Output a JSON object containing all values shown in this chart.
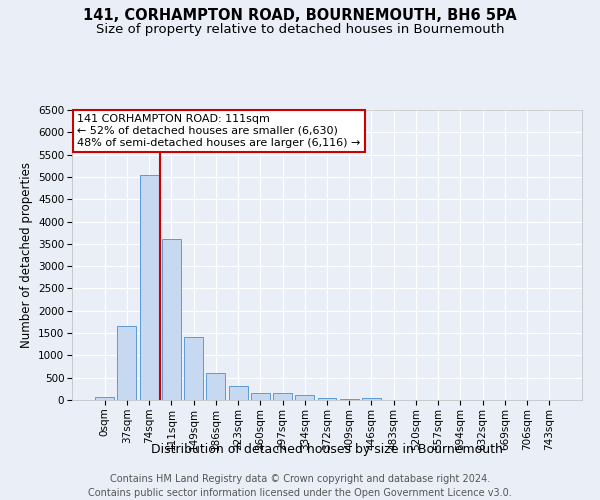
{
  "title": "141, CORHAMPTON ROAD, BOURNEMOUTH, BH6 5PA",
  "subtitle": "Size of property relative to detached houses in Bournemouth",
  "xlabel": "Distribution of detached houses by size in Bournemouth",
  "ylabel": "Number of detached properties",
  "footer_line1": "Contains HM Land Registry data © Crown copyright and database right 2024.",
  "footer_line2": "Contains public sector information licensed under the Open Government Licence v3.0.",
  "bin_labels": [
    "0sqm",
    "37sqm",
    "74sqm",
    "111sqm",
    "149sqm",
    "186sqm",
    "223sqm",
    "260sqm",
    "297sqm",
    "334sqm",
    "372sqm",
    "409sqm",
    "446sqm",
    "483sqm",
    "520sqm",
    "557sqm",
    "594sqm",
    "632sqm",
    "669sqm",
    "706sqm",
    "743sqm"
  ],
  "bar_values": [
    75,
    1650,
    5050,
    3600,
    1420,
    610,
    310,
    160,
    150,
    105,
    55,
    30,
    55,
    10,
    5,
    2,
    2,
    2,
    1,
    1,
    0
  ],
  "bar_color": "#c6d9f0",
  "bar_edgecolor": "#5b9bd5",
  "highlight_index": 3,
  "highlight_line_color": "#cc0000",
  "annotation_line1": "141 CORHAMPTON ROAD: 111sqm",
  "annotation_line2": "← 52% of detached houses are smaller (6,630)",
  "annotation_line3": "48% of semi-detached houses are larger (6,116) →",
  "annotation_box_color": "#cc0000",
  "ylim": [
    0,
    6500
  ],
  "yticks": [
    0,
    500,
    1000,
    1500,
    2000,
    2500,
    3000,
    3500,
    4000,
    4500,
    5000,
    5500,
    6000,
    6500
  ],
  "background_color": "#eaeff7",
  "plot_bg_color": "#eaeff7",
  "grid_color": "#ffffff",
  "title_fontsize": 10.5,
  "subtitle_fontsize": 9.5,
  "xlabel_fontsize": 9,
  "ylabel_fontsize": 8.5,
  "footer_fontsize": 7,
  "tick_fontsize": 7.5,
  "annotation_fontsize": 8
}
